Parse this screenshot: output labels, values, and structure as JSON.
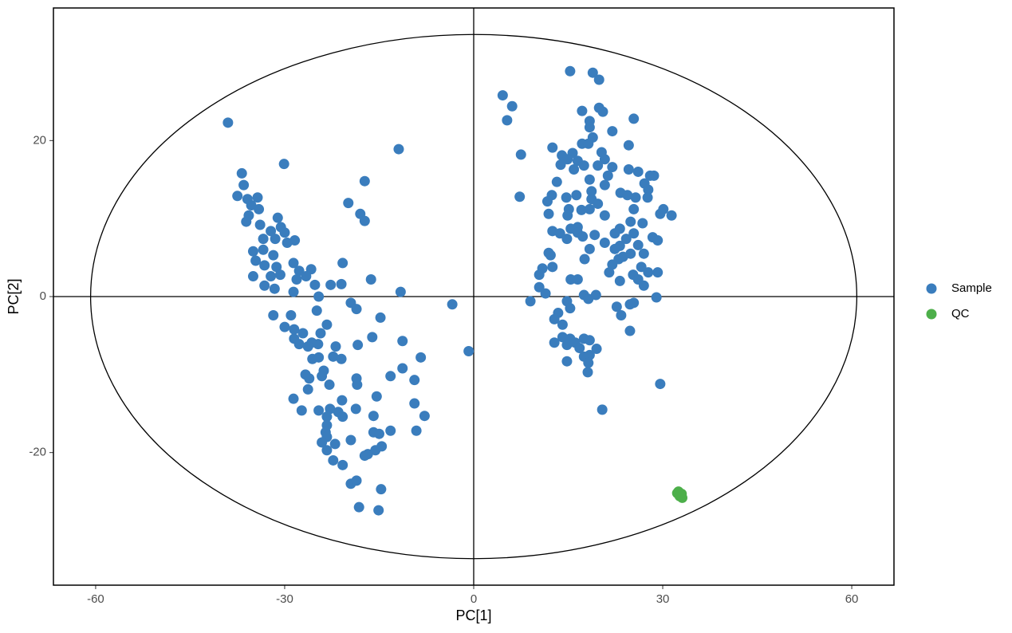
{
  "chart_data": {
    "type": "scatter",
    "x_label": "PC[1]",
    "y_label": "PC[2]",
    "xlim": [
      -66.7,
      66.7
    ],
    "ylim": [
      -37,
      37
    ],
    "xticks": [
      -60,
      -30,
      0,
      30,
      60
    ],
    "yticks": [
      -20,
      0,
      20
    ],
    "grid": false,
    "legend": "right",
    "ellipse": [
      60.8,
      33.6
    ],
    "series": [
      {
        "name": "Sample",
        "color": "#3a7dbd",
        "x": [
          -39.0,
          -36.8,
          -30.1,
          -11.9,
          -17.3,
          -19.9,
          -18.0,
          -17.3,
          -36.5,
          -37.5,
          -35.9,
          -34.3,
          -35.3,
          -34.1,
          -35.7,
          -36.1,
          -33.9,
          -31.1,
          -30.6,
          -32.2,
          -33.4,
          -30.0,
          -31.5,
          -28.4,
          -29.6,
          -33.4,
          -35.0,
          -31.8,
          -34.6,
          -33.2,
          -31.3,
          -28.6,
          -27.7,
          -25.8,
          -35.0,
          -32.2,
          -30.7,
          -28.1,
          -26.6,
          -33.2,
          -31.6,
          -28.6,
          -25.2,
          -22.7,
          -21.0,
          -20.8,
          -16.3,
          -11.6,
          -24.6,
          -19.5,
          -18.6,
          -31.8,
          -29.0,
          -24.9,
          -14.8,
          -3.4,
          -0.8,
          -30.0,
          -28.5,
          -23.3,
          -24.3,
          -27.1,
          -28.5,
          -27.7,
          -25.7,
          -26.3,
          -24.7,
          -21.9,
          -18.4,
          -16.1,
          -11.3,
          -8.4,
          -24.6,
          -25.6,
          -22.3,
          -21.0,
          -23.8,
          -26.7,
          -26.1,
          -24.1,
          -18.6,
          -13.2,
          -11.3,
          -9.4,
          -18.5,
          -22.9,
          -26.3,
          -15.4,
          -28.6,
          -20.9,
          -9.4,
          -27.3,
          -24.6,
          -22.8,
          -21.5,
          -18.7,
          -23.3,
          -20.8,
          -15.9,
          -7.8,
          -23.3,
          -23.5,
          -13.2,
          -9.1,
          -23.3,
          -15.9,
          -15.0,
          -24.1,
          -19.5,
          -22.0,
          -23.3,
          -14.6,
          -15.6,
          -16.8,
          -17.3,
          -22.3,
          -20.8,
          -19.5,
          -18.6,
          -14.7,
          -18.2,
          -15.1,
          4.6,
          6.1,
          5.3,
          7.5,
          7.3,
          15.3,
          18.9,
          19.9,
          17.2,
          19.9,
          20.5,
          25.4,
          18.4,
          18.4,
          22.0,
          18.9,
          12.5,
          17.2,
          18.2,
          24.6,
          15.7,
          14.0,
          20.3,
          14.9,
          16.5,
          20.8,
          13.8,
          15.9,
          17.5,
          19.7,
          22.0,
          24.6,
          26.1,
          28.0,
          28.6,
          21.3,
          13.2,
          18.4,
          20.8,
          27.1,
          27.7,
          18.7,
          12.4,
          14.7,
          16.3,
          23.3,
          24.4,
          25.7,
          27.6,
          18.7,
          11.7,
          19.7,
          25.4,
          15.1,
          17.1,
          18.4,
          30.1,
          11.9,
          14.9,
          20.8,
          29.6,
          31.4,
          24.9,
          26.8,
          16.5,
          23.2,
          12.5,
          13.7,
          15.4,
          16.5,
          19.2,
          22.4,
          25.4,
          17.3,
          14.8,
          24.2,
          28.4,
          29.2,
          20.8,
          23.2,
          26.1,
          18.4,
          22.4,
          11.9,
          27.0,
          12.2,
          24.9,
          23.7,
          17.6,
          23.0,
          22.0,
          10.9,
          12.5,
          26.6,
          21.5,
          25.3,
          10.4,
          27.7,
          29.2,
          15.4,
          16.5,
          23.2,
          26.1,
          10.4,
          27.0,
          11.4,
          17.5,
          19.4,
          18.2,
          14.8,
          9.0,
          29.0,
          25.4,
          24.8,
          22.7,
          15.3,
          13.4,
          23.4,
          12.8,
          14.1,
          24.8,
          14.1,
          12.8,
          15.3,
          17.5,
          18.4,
          16.1,
          14.8,
          16.8,
          19.5,
          18.4,
          17.5,
          18.2,
          14.8,
          18.1,
          29.6,
          20.4
        ],
        "y": [
          22.3,
          15.8,
          17.0,
          18.9,
          14.8,
          12.0,
          10.6,
          9.7,
          14.3,
          12.9,
          12.5,
          12.7,
          11.7,
          11.2,
          10.4,
          9.6,
          9.2,
          10.1,
          8.9,
          8.4,
          7.4,
          8.2,
          7.4,
          7.2,
          6.9,
          6.0,
          5.8,
          5.3,
          4.6,
          4.0,
          3.8,
          4.3,
          3.3,
          3.5,
          2.6,
          2.6,
          2.8,
          2.2,
          2.6,
          1.4,
          1.0,
          0.6,
          1.5,
          1.5,
          1.6,
          4.3,
          2.2,
          0.6,
          0,
          -0.8,
          -1.6,
          -2.4,
          -2.4,
          -1.8,
          -2.7,
          -1.0,
          -7.0,
          -3.9,
          -4.2,
          -3.6,
          -4.7,
          -4.7,
          -5.4,
          -6.1,
          -5.9,
          -6.4,
          -6.1,
          -6.4,
          -6.2,
          -5.2,
          -5.7,
          -7.8,
          -7.8,
          -8.0,
          -7.7,
          -8.0,
          -9.5,
          -10.0,
          -10.5,
          -10.2,
          -10.5,
          -10.2,
          -9.2,
          -10.7,
          -11.3,
          -11.3,
          -11.9,
          -12.8,
          -13.1,
          -13.3,
          -13.7,
          -14.6,
          -14.6,
          -14.4,
          -14.8,
          -14.4,
          -15.4,
          -15.4,
          -15.3,
          -15.3,
          -16.5,
          -17.4,
          -17.2,
          -17.2,
          -18.0,
          -17.4,
          -17.6,
          -18.7,
          -18.4,
          -18.9,
          -19.7,
          -19.2,
          -19.7,
          -20.2,
          -20.4,
          -21.0,
          -21.6,
          -24.0,
          -23.6,
          -24.7,
          -27.0,
          -27.4,
          25.8,
          24.4,
          22.6,
          18.2,
          12.8,
          28.9,
          28.7,
          27.8,
          23.8,
          24.2,
          23.7,
          22.8,
          22.5,
          21.7,
          21.2,
          20.4,
          19.1,
          19.6,
          19.6,
          19.4,
          18.4,
          18.1,
          18.5,
          17.6,
          17.4,
          17.6,
          16.9,
          16.3,
          16.8,
          16.8,
          16.6,
          16.3,
          16.0,
          15.5,
          15.5,
          15.5,
          14.7,
          15.0,
          14.3,
          14.5,
          13.7,
          13.5,
          13.0,
          12.7,
          13.0,
          13.3,
          13.0,
          12.7,
          12.7,
          12.5,
          12.2,
          11.9,
          11.2,
          11.2,
          11.1,
          11.2,
          11.2,
          10.6,
          10.4,
          10.4,
          10.6,
          10.4,
          9.6,
          9.4,
          8.9,
          8.7,
          8.4,
          8.1,
          8.7,
          8.2,
          7.9,
          8.1,
          8.1,
          7.7,
          7.4,
          7.4,
          7.6,
          7.2,
          6.9,
          6.5,
          6.6,
          6.1,
          6.1,
          5.6,
          5.5,
          5.3,
          5.5,
          5.1,
          4.8,
          4.8,
          4.1,
          3.6,
          3.8,
          3.8,
          3.1,
          2.8,
          2.8,
          3.1,
          3.1,
          2.2,
          2.2,
          2.0,
          2.2,
          1.2,
          1.4,
          0.4,
          0.2,
          0.2,
          -0.3,
          -0.6,
          -0.6,
          -0.1,
          -0.8,
          -1.0,
          -1.3,
          -1.5,
          -2.1,
          -2.4,
          -2.9,
          -3.6,
          -4.4,
          -5.2,
          -5.9,
          -5.4,
          -5.4,
          -5.6,
          -5.9,
          -6.2,
          -6.6,
          -6.7,
          -7.5,
          -7.7,
          -8.5,
          -8.3,
          -9.7,
          -11.2,
          -14.5
        ]
      },
      {
        "name": "QC",
        "color": "#4daf4a",
        "x": [
          32.3,
          32.7,
          33.0,
          32.5,
          33.1,
          32.9
        ],
        "y": [
          -25.2,
          -25.6,
          -25.3,
          -25.0,
          -25.8,
          -25.4
        ]
      }
    ]
  }
}
